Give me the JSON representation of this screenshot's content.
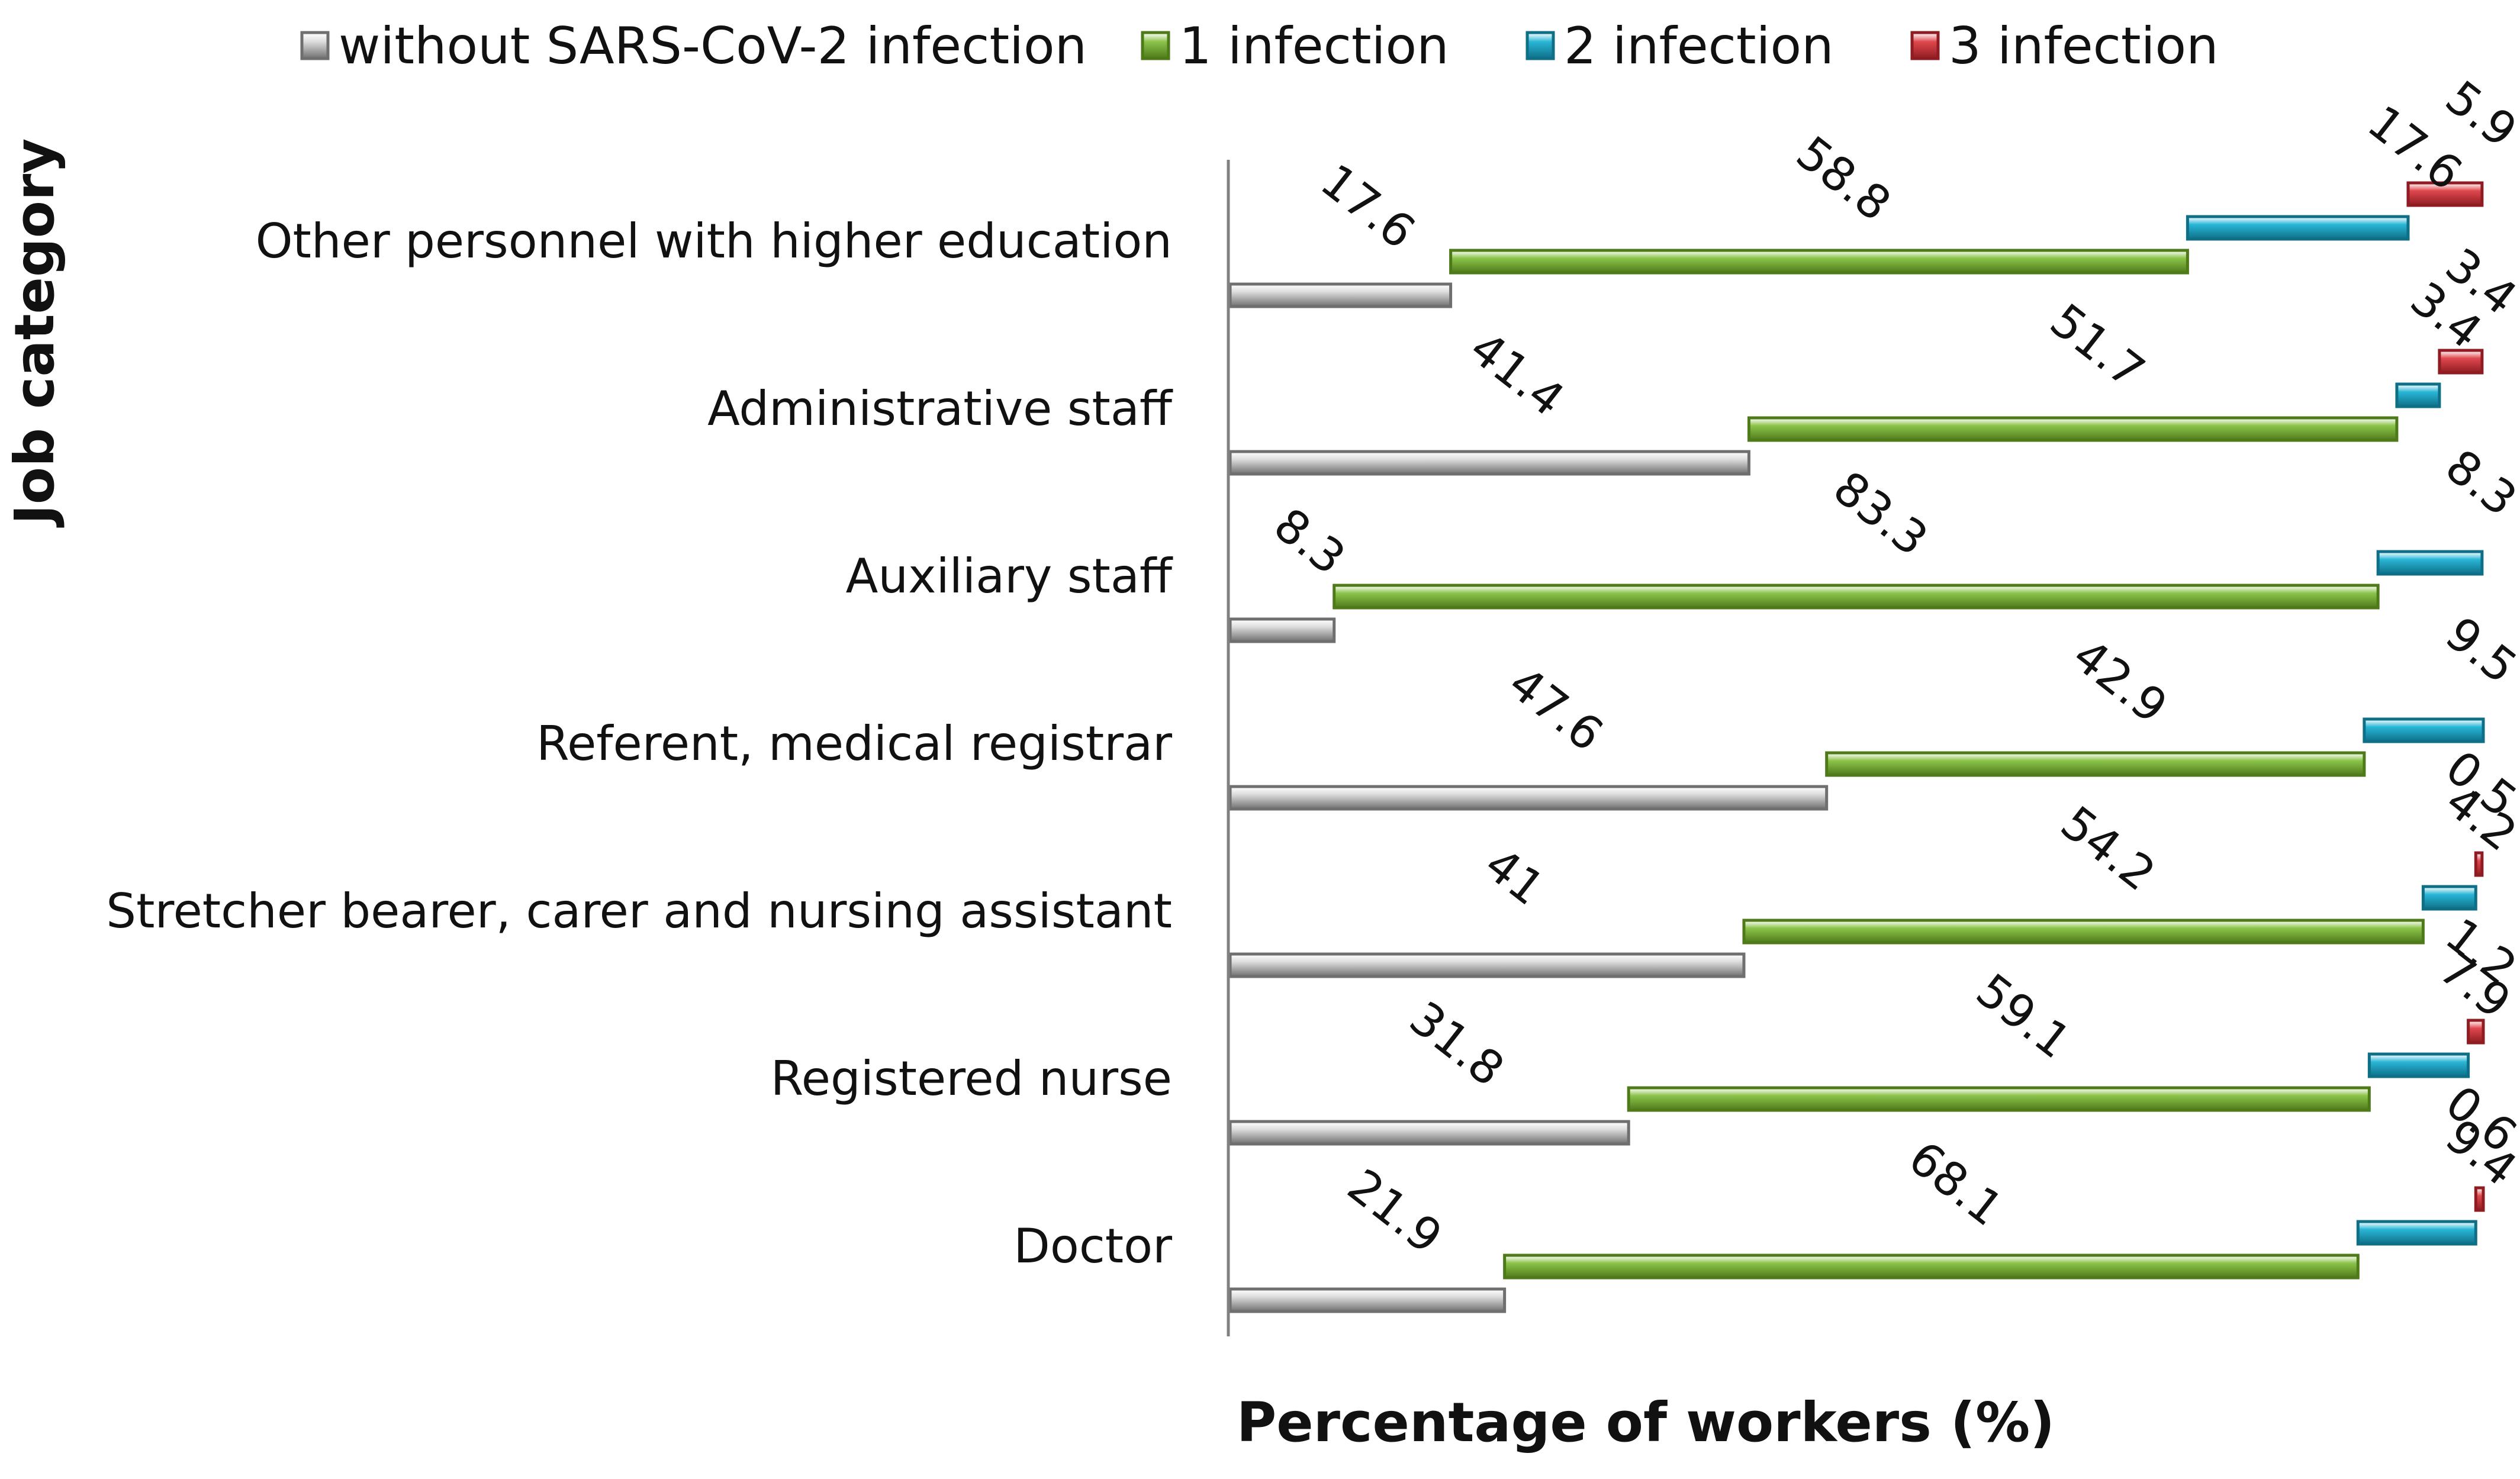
{
  "chart_data": {
    "type": "bar",
    "orientation": "horizontal-stacked-staggered",
    "title": "",
    "xlabel": "Percentage of workers (%)",
    "ylabel": "Job category",
    "xlim": [
      0,
      100
    ],
    "categories": [
      "Other personnel with higher education",
      "Administrative staff",
      "Auxiliary staff",
      "Referent, medical registrar",
      "Stretcher bearer, carer and nursing assistant",
      "Registered nurse",
      "Doctor"
    ],
    "series": [
      {
        "name": "without SARS-CoV-2 infection",
        "values": [
          17.6,
          41.4,
          8.3,
          47.6,
          41,
          31.8,
          21.9
        ],
        "labels": [
          "17.6",
          "41.4",
          "8.3",
          "47.6",
          "41",
          "31.8",
          "21.9"
        ]
      },
      {
        "name": "1 infection",
        "values": [
          58.8,
          51.7,
          83.3,
          42.9,
          54.2,
          59.1,
          68.1
        ],
        "labels": [
          "58.8",
          "51.7",
          "83.3",
          "42.9",
          "54.2",
          "59.1",
          "68.1"
        ]
      },
      {
        "name": "2 infection",
        "values": [
          17.6,
          3.4,
          8.3,
          9.5,
          4.2,
          7.9,
          9.4
        ],
        "labels": [
          "17.6",
          "3.4",
          "8.3",
          "9.5",
          "4.2",
          "7.9",
          "9.4"
        ]
      },
      {
        "name": "3 infection",
        "values": [
          5.9,
          3.4,
          0,
          0,
          0.5,
          1.2,
          0.6
        ],
        "labels": [
          "5.9",
          "3.4",
          "",
          "",
          "0.5",
          "1.2",
          "0.6"
        ]
      }
    ],
    "colors": [
      "#dcdcdc",
      "#8bc34a",
      "#29b6d6",
      "#e0484e"
    ],
    "edge_colors": [
      "#6f6f6f",
      "#4e7a1a",
      "#0e6f87",
      "#8e1c22"
    ],
    "legend_position": "top",
    "grid": false
  }
}
